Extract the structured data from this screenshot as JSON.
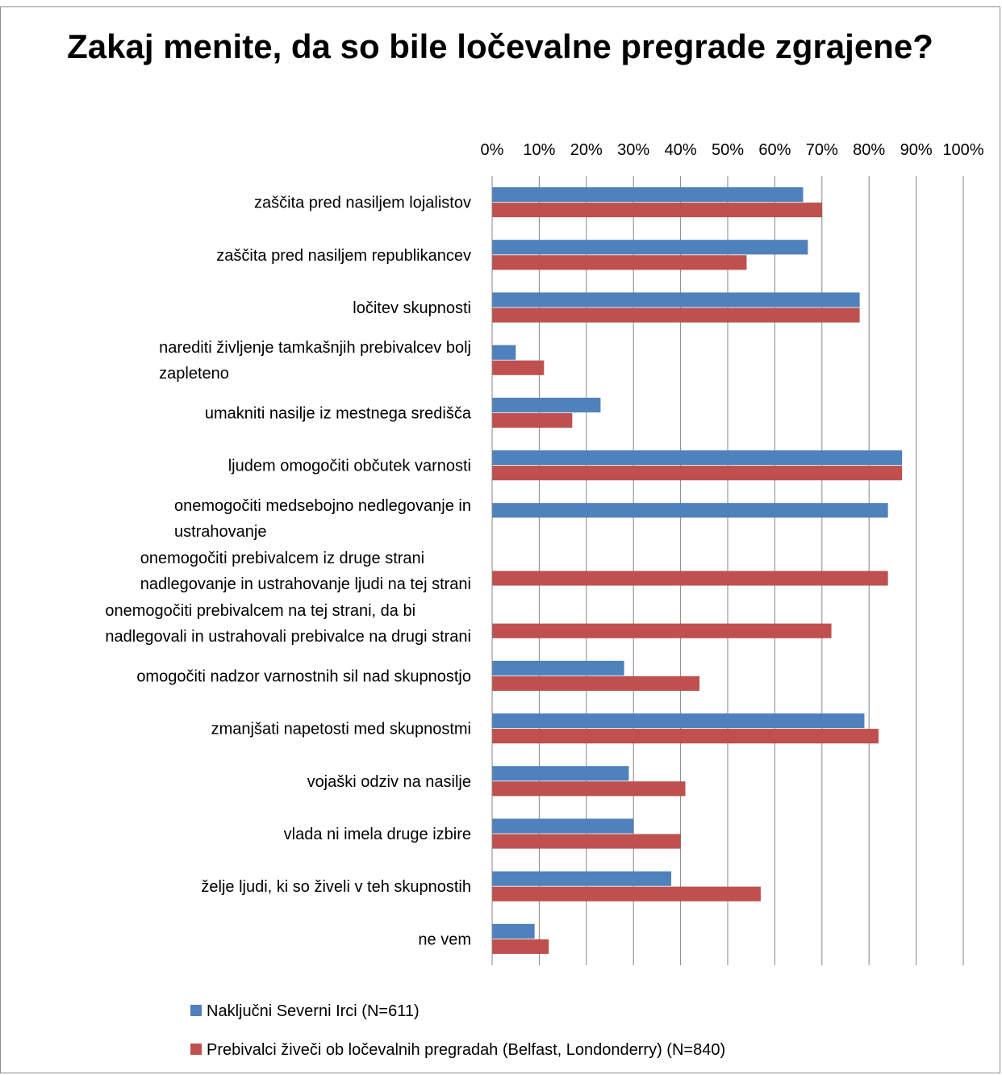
{
  "chart_data": {
    "type": "bar",
    "orientation": "horizontal",
    "title": "Zakaj menite, da so bile ločevalne pregrade zgrajene?",
    "x_ticks": [
      "0%",
      "10%",
      "20%",
      "30%",
      "40%",
      "50%",
      "60%",
      "70%",
      "80%",
      "90%",
      "100%"
    ],
    "xlim": [
      0,
      100
    ],
    "grid": true,
    "legend_position": "bottom",
    "categories": [
      [
        "zaščita pred nasiljem lojalistov"
      ],
      [
        "zaščita pred nasiljem republikancev"
      ],
      [
        "ločitev skupnosti"
      ],
      [
        "narediti življenje tamkašnjih prebivalcev bolj",
        "zapleteno"
      ],
      [
        "umakniti nasilje iz mestnega središča"
      ],
      [
        "ljudem omogočiti občutek varnosti"
      ],
      [
        "onemogočiti medsebojno nedlegovanje in",
        "ustrahovanje"
      ],
      [
        "onemogočiti prebivalcem iz druge strani",
        "nadlegovanje in ustrahovanje ljudi na tej strani"
      ],
      [
        "onemogočiti prebivalcem na tej strani, da bi",
        "nadlegovali in ustrahovali prebivalce na drugi strani"
      ],
      [
        "omogočiti nadzor varnostnih sil nad skupnostjo"
      ],
      [
        "zmanjšati napetosti med skupnostmi"
      ],
      [
        "vojaški odziv na nasilje"
      ],
      [
        "vlada ni imela druge izbire"
      ],
      [
        "želje ljudi, ki so živeli v teh skupnostih"
      ],
      [
        "ne vem"
      ]
    ],
    "series": [
      {
        "name": "Naključni Severni Irci (N=611)",
        "color": "#4f81bd",
        "values": [
          66,
          67,
          78,
          5,
          23,
          87,
          84,
          null,
          null,
          28,
          79,
          29,
          30,
          38,
          9
        ]
      },
      {
        "name": "Prebivalci živeči ob ločevalnih pregradah (Belfast, Londonderry) (N=840)",
        "color": "#c0504d",
        "values": [
          70,
          54,
          78,
          11,
          17,
          87,
          null,
          84,
          72,
          44,
          82,
          41,
          40,
          57,
          12
        ]
      }
    ]
  }
}
